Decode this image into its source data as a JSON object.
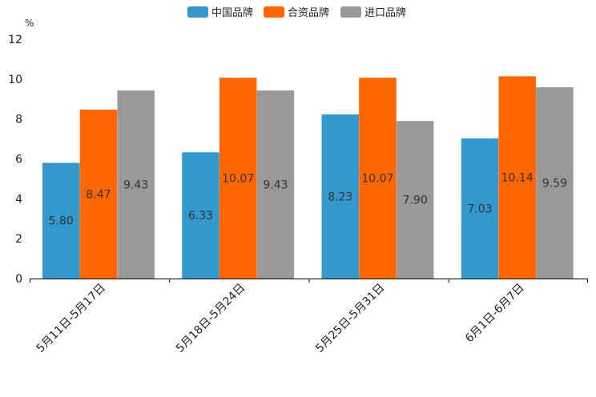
{
  "chart_data": {
    "type": "bar",
    "unit": "%",
    "categories": [
      "5月11日-5月17日",
      "5月18日-5月24日",
      "5月25日-5月31日",
      "6月1日-6月7日"
    ],
    "series": [
      {
        "name": "中国品牌",
        "color": "#3399cc",
        "values": [
          5.8,
          6.33,
          8.23,
          7.03
        ]
      },
      {
        "name": "合资品牌",
        "color": "#ff6600",
        "values": [
          8.47,
          10.07,
          10.07,
          10.14
        ]
      },
      {
        "name": "进口品牌",
        "color": "#999999",
        "values": [
          9.43,
          9.43,
          7.9,
          9.59
        ]
      }
    ],
    "ylim": [
      0,
      12
    ],
    "yticks": [
      0,
      2,
      4,
      6,
      8,
      10,
      12
    ],
    "legend_position": "top-center",
    "grid": false
  }
}
